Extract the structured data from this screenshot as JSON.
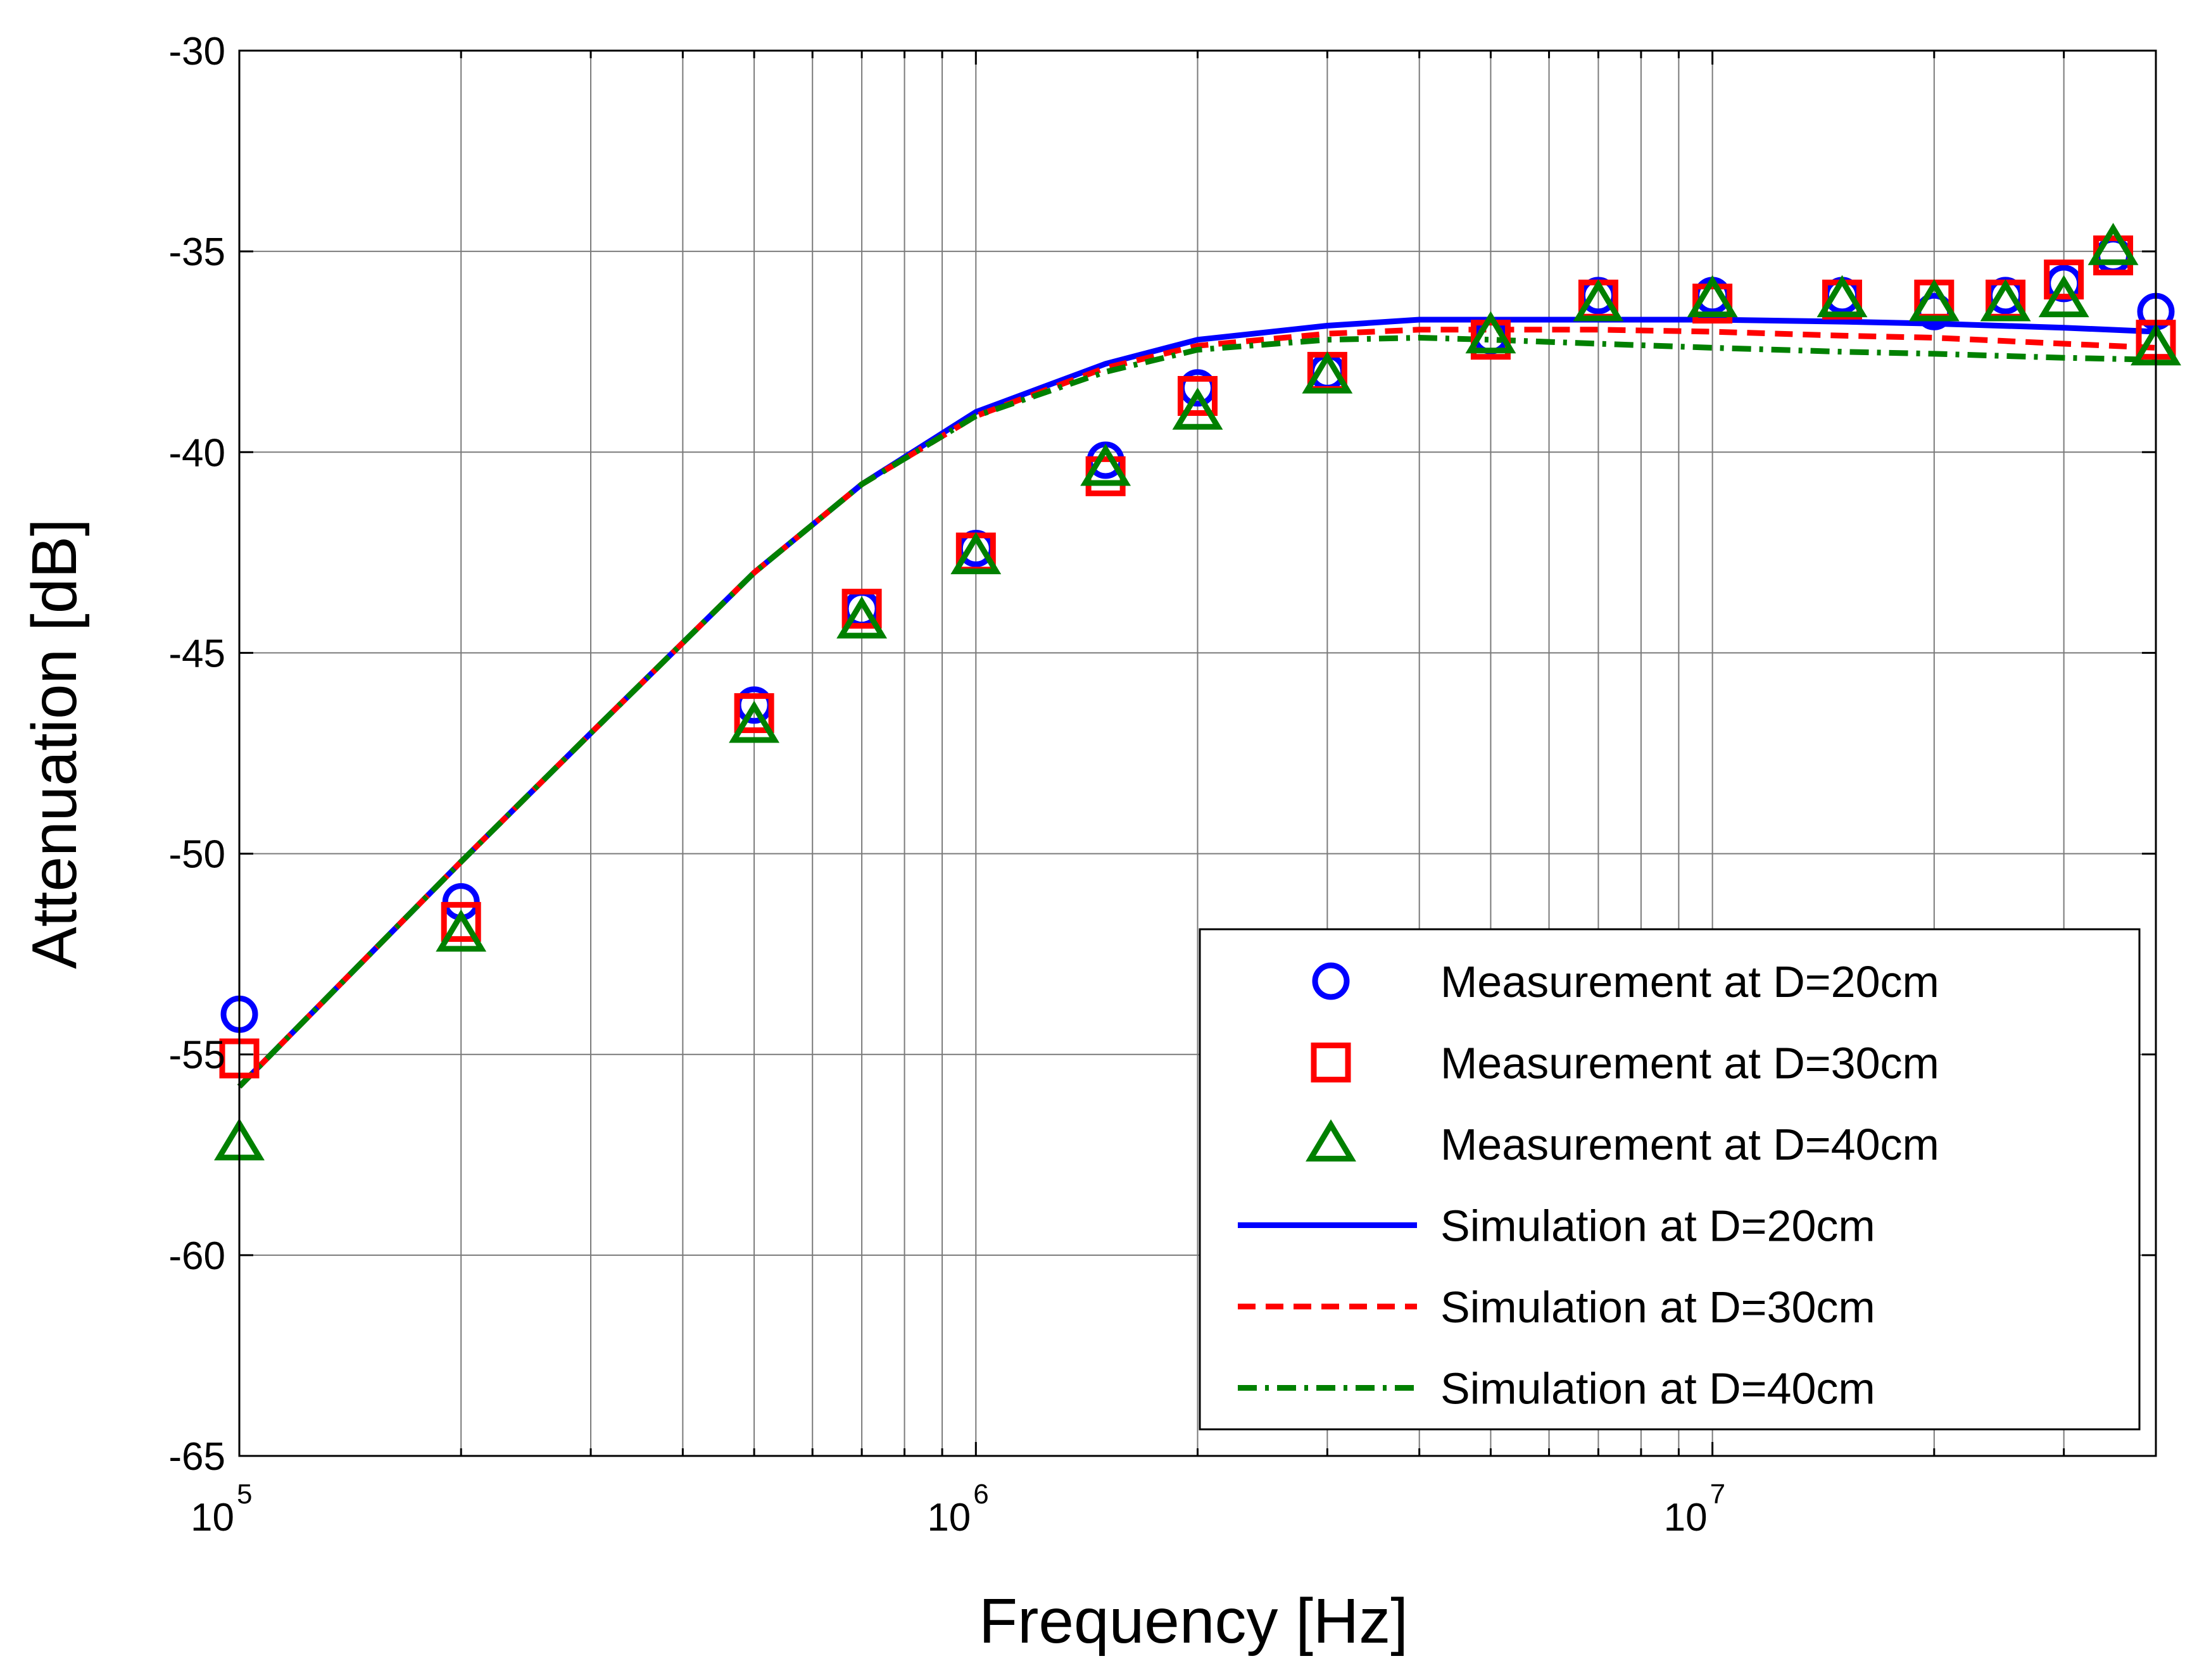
{
  "chart_data": {
    "type": "scatter",
    "title": "",
    "xlabel": "Frequency [Hz]",
    "ylabel": "Attenuation [dB]",
    "xscale": "log",
    "xlim": [
      100000,
      40000000
    ],
    "ylim": [
      -65,
      -30
    ],
    "grid": true,
    "legend_position": "bottom-right",
    "x_ticks": [
      {
        "value": 100000,
        "base": "10",
        "exp": "5"
      },
      {
        "value": 1000000,
        "base": "10",
        "exp": "6"
      },
      {
        "value": 10000000,
        "base": "10",
        "exp": "7"
      }
    ],
    "y_ticks": [
      {
        "value": -30,
        "label": "-30"
      },
      {
        "value": -35,
        "label": "-35"
      },
      {
        "value": -40,
        "label": "-40"
      },
      {
        "value": -45,
        "label": "-45"
      },
      {
        "value": -50,
        "label": "-50"
      },
      {
        "value": -55,
        "label": "-55"
      },
      {
        "value": -60,
        "label": "-60"
      },
      {
        "value": -65,
        "label": "-65"
      }
    ],
    "series": [
      {
        "name": "Measurement at D=20cm",
        "kind": "marker",
        "marker": "circle",
        "color": "#0000FF",
        "points": [
          [
            100000,
            -54.0
          ],
          [
            200000,
            -51.2
          ],
          [
            500000,
            -46.3
          ],
          [
            700000,
            -43.9
          ],
          [
            1000000,
            -42.4
          ],
          [
            1500000,
            -40.2
          ],
          [
            2000000,
            -38.4
          ],
          [
            3000000,
            -38.0
          ],
          [
            5000000,
            -37.1
          ],
          [
            7000000,
            -36.1
          ],
          [
            10000000,
            -36.1
          ],
          [
            15000000,
            -36.1
          ],
          [
            20000000,
            -36.5
          ],
          [
            25000000,
            -36.1
          ],
          [
            30000000,
            -35.8
          ],
          [
            35000000,
            -35.1
          ],
          [
            40000000,
            -36.5
          ]
        ]
      },
      {
        "name": "Measurement at D=30cm",
        "kind": "marker",
        "marker": "square",
        "color": "#FF0000",
        "points": [
          [
            100000,
            -55.1
          ],
          [
            200000,
            -51.7
          ],
          [
            500000,
            -46.5
          ],
          [
            700000,
            -43.9
          ],
          [
            1000000,
            -42.5
          ],
          [
            1500000,
            -40.6
          ],
          [
            2000000,
            -38.6
          ],
          [
            3000000,
            -38.0
          ],
          [
            5000000,
            -37.2
          ],
          [
            7000000,
            -36.2
          ],
          [
            10000000,
            -36.3
          ],
          [
            15000000,
            -36.2
          ],
          [
            20000000,
            -36.2
          ],
          [
            25000000,
            -36.2
          ],
          [
            30000000,
            -35.7
          ],
          [
            35000000,
            -35.1
          ],
          [
            40000000,
            -37.2
          ]
        ]
      },
      {
        "name": "Measurement at D=40cm",
        "kind": "marker",
        "marker": "triangle",
        "color": "#008000",
        "points": [
          [
            100000,
            -57.2
          ],
          [
            200000,
            -52.0
          ],
          [
            500000,
            -46.8
          ],
          [
            700000,
            -44.2
          ],
          [
            1000000,
            -42.6
          ],
          [
            1500000,
            -40.4
          ],
          [
            2000000,
            -39.0
          ],
          [
            3000000,
            -38.1
          ],
          [
            5000000,
            -37.1
          ],
          [
            7000000,
            -36.3
          ],
          [
            10000000,
            -36.2
          ],
          [
            15000000,
            -36.2
          ],
          [
            20000000,
            -36.3
          ],
          [
            25000000,
            -36.3
          ],
          [
            30000000,
            -36.2
          ],
          [
            35000000,
            -34.9
          ],
          [
            40000000,
            -37.4
          ]
        ]
      },
      {
        "name": "Simulation at D=20cm",
        "kind": "line",
        "dash": "solid",
        "color": "#0000FF",
        "points": [
          [
            100000,
            -55.8
          ],
          [
            200000,
            -50.2
          ],
          [
            300000,
            -47.0
          ],
          [
            500000,
            -43.0
          ],
          [
            700000,
            -40.8
          ],
          [
            1000000,
            -39.0
          ],
          [
            1500000,
            -37.8
          ],
          [
            2000000,
            -37.2
          ],
          [
            3000000,
            -36.85
          ],
          [
            4000000,
            -36.7
          ],
          [
            5000000,
            -36.7
          ],
          [
            7000000,
            -36.7
          ],
          [
            10000000,
            -36.7
          ],
          [
            15000000,
            -36.75
          ],
          [
            20000000,
            -36.8
          ],
          [
            30000000,
            -36.9
          ],
          [
            40000000,
            -37.0
          ]
        ]
      },
      {
        "name": "Simulation at D=30cm",
        "kind": "line",
        "dash": "dash",
        "color": "#FF0000",
        "points": [
          [
            100000,
            -55.8
          ],
          [
            200000,
            -50.2
          ],
          [
            300000,
            -47.0
          ],
          [
            500000,
            -43.0
          ],
          [
            700000,
            -40.8
          ],
          [
            1000000,
            -39.1
          ],
          [
            1500000,
            -37.9
          ],
          [
            2000000,
            -37.35
          ],
          [
            3000000,
            -37.05
          ],
          [
            4000000,
            -36.95
          ],
          [
            5000000,
            -36.95
          ],
          [
            7000000,
            -36.95
          ],
          [
            10000000,
            -37.0
          ],
          [
            15000000,
            -37.1
          ],
          [
            20000000,
            -37.15
          ],
          [
            30000000,
            -37.3
          ],
          [
            40000000,
            -37.4
          ]
        ]
      },
      {
        "name": "Simulation at D=40cm",
        "kind": "line",
        "dash": "dashdot",
        "color": "#008000",
        "points": [
          [
            100000,
            -55.8
          ],
          [
            200000,
            -50.2
          ],
          [
            300000,
            -47.0
          ],
          [
            500000,
            -43.0
          ],
          [
            700000,
            -40.8
          ],
          [
            1000000,
            -39.1
          ],
          [
            1500000,
            -38.0
          ],
          [
            2000000,
            -37.45
          ],
          [
            3000000,
            -37.2
          ],
          [
            4000000,
            -37.15
          ],
          [
            5000000,
            -37.2
          ],
          [
            7000000,
            -37.3
          ],
          [
            10000000,
            -37.4
          ],
          [
            15000000,
            -37.5
          ],
          [
            20000000,
            -37.55
          ],
          [
            30000000,
            -37.65
          ],
          [
            40000000,
            -37.7
          ]
        ]
      }
    ]
  }
}
